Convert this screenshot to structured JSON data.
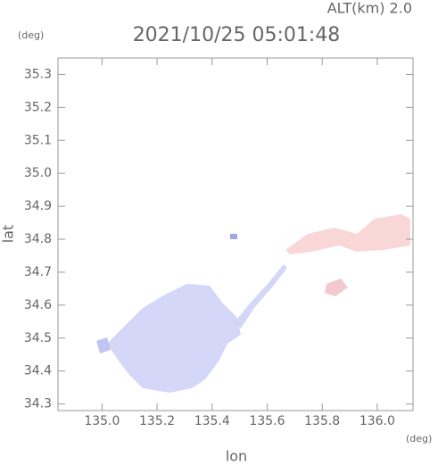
{
  "chart_data": {
    "type": "map",
    "title": "2021/10/25 05:01:48",
    "annotation": "ALT(km) 2.0",
    "x_label": "lon",
    "y_label": "lat",
    "x_unit": "(deg)",
    "y_unit": "(deg)",
    "xlim": [
      134.84,
      136.13
    ],
    "ylim": [
      34.28,
      35.35
    ],
    "xticks": [
      {
        "value": 135,
        "label": "135.0"
      },
      135.2,
      135.4,
      135.6,
      135.8,
      {
        "value": 136,
        "label": "136.0"
      }
    ],
    "yticks": [
      34.3,
      34.4,
      34.5,
      34.6,
      34.7,
      34.8,
      34.9,
      {
        "value": 35,
        "label": "35.0"
      },
      35.1,
      35.2,
      35.3
    ]
  }
}
